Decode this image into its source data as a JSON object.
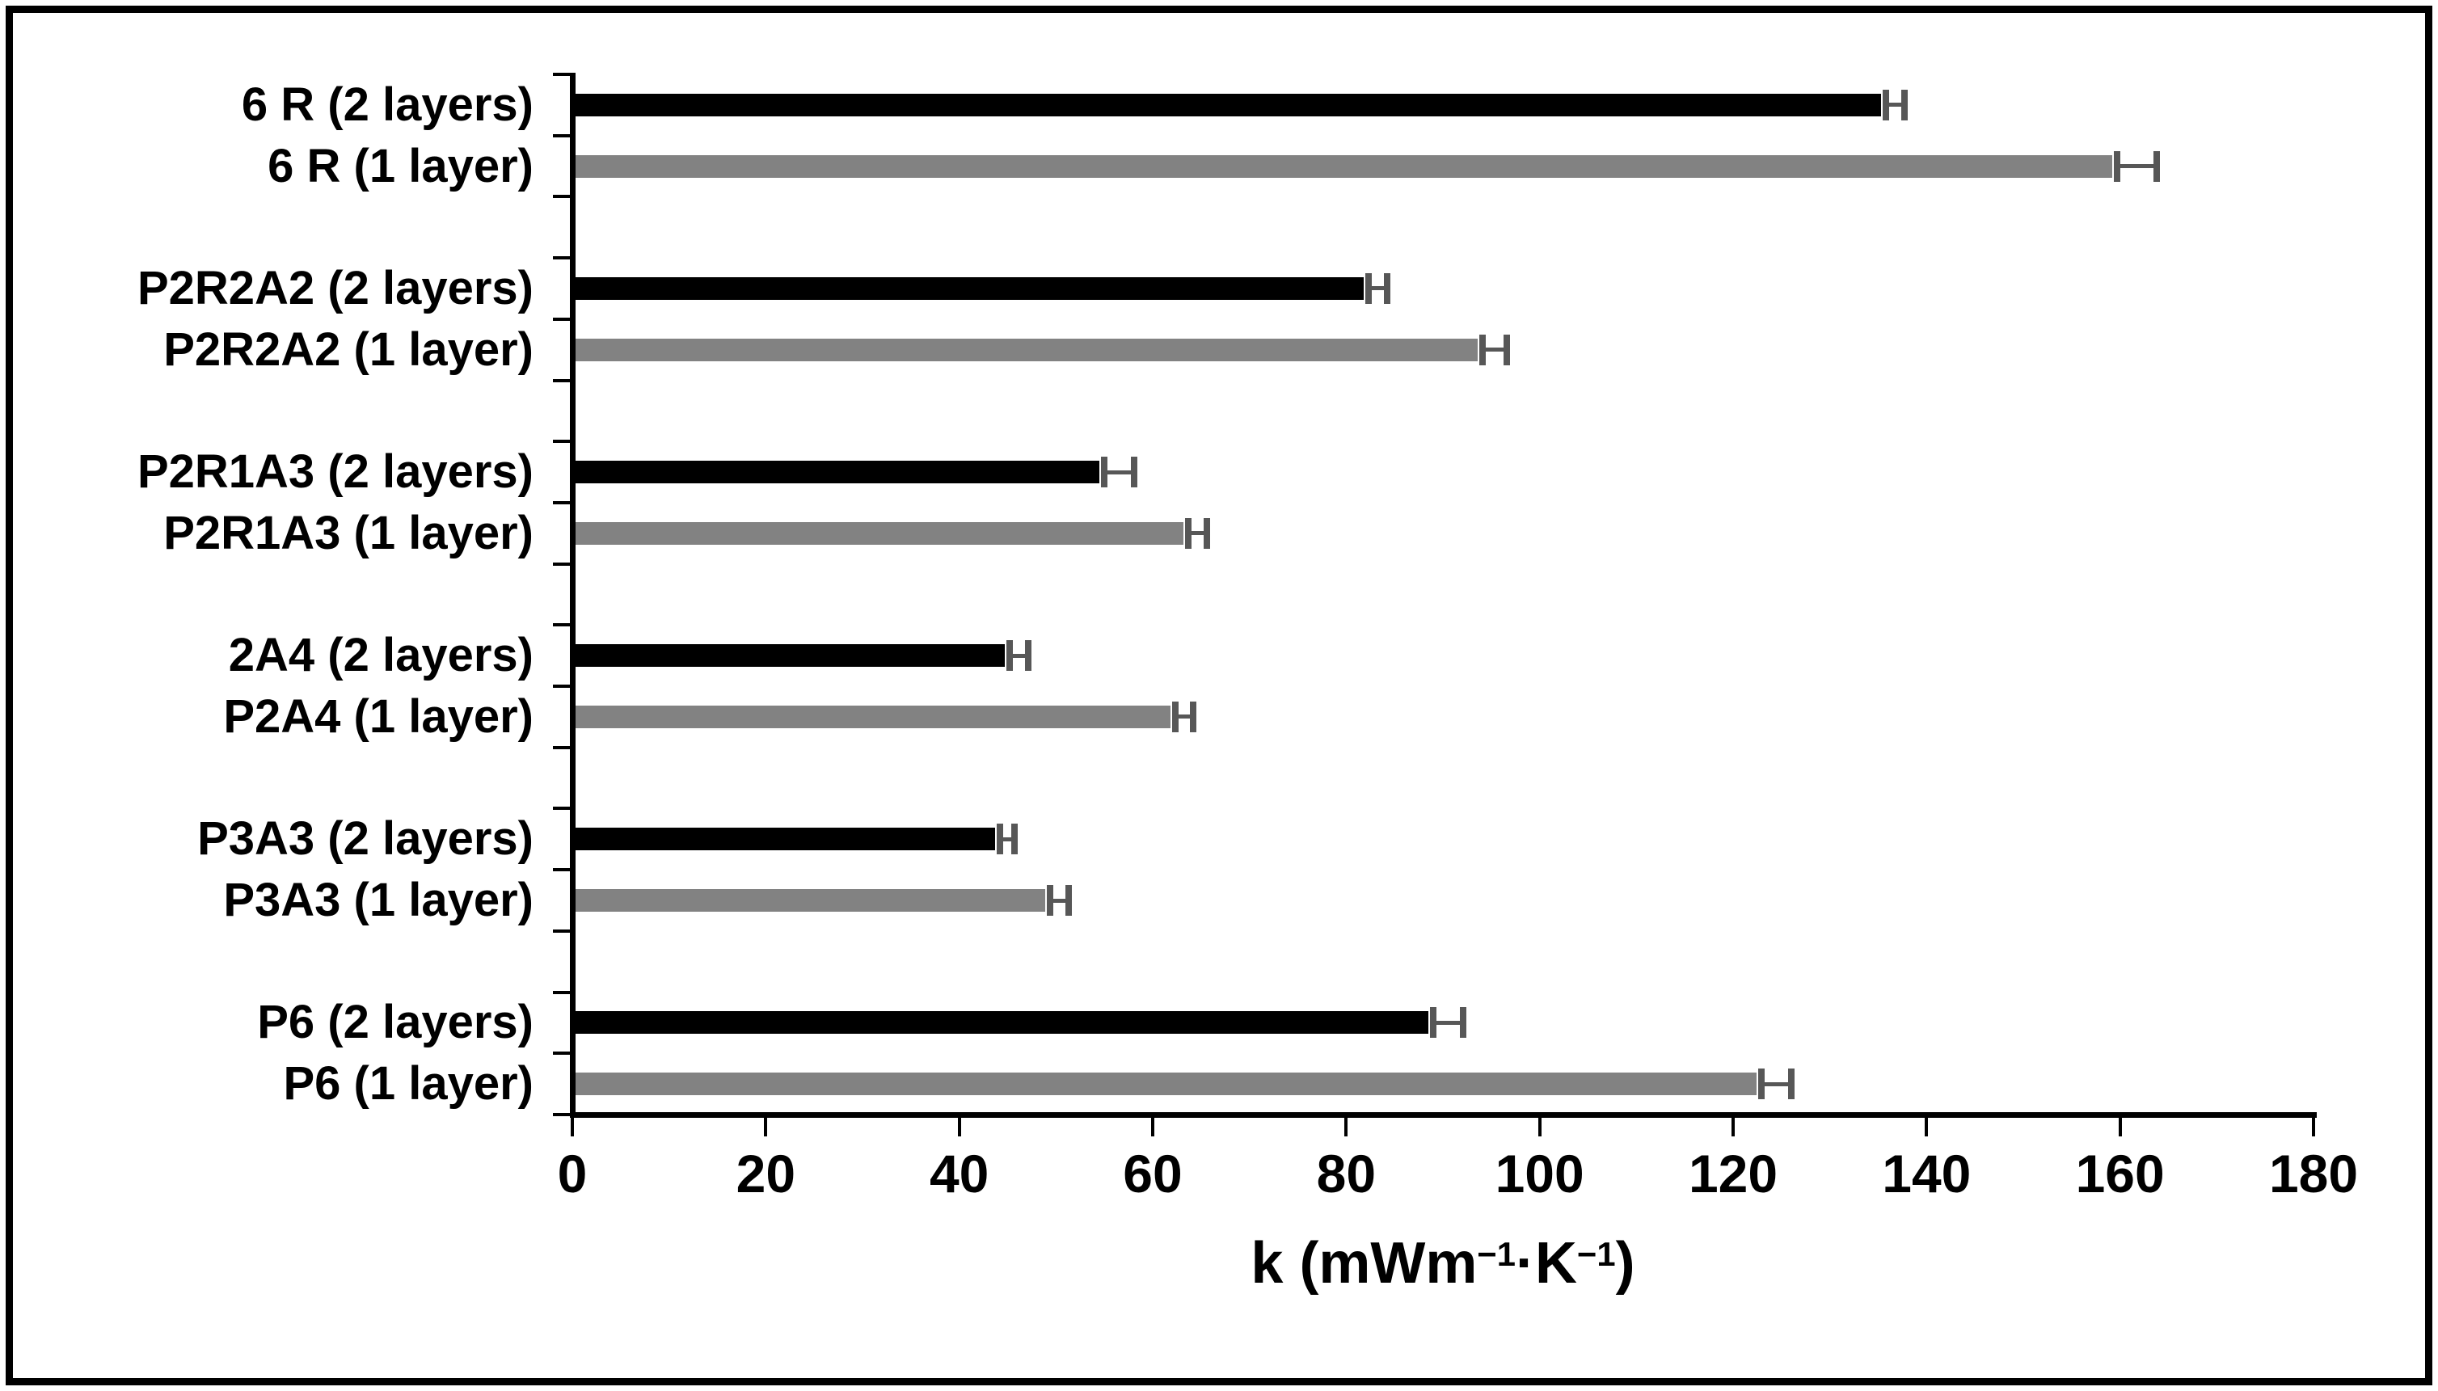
{
  "chart_data": {
    "type": "bar",
    "orientation": "horizontal",
    "title": "",
    "xlabel": "k (mWm−1·K−1)",
    "xlabel_parts": [
      {
        "t": "k (mWm",
        "sup": false
      },
      {
        "t": "−1",
        "sup": true
      },
      {
        "t": "·K",
        "sup": false
      },
      {
        "t": "−1",
        "sup": true
      },
      {
        "t": ")",
        "sup": false
      }
    ],
    "ylabel": "",
    "xlim": [
      0,
      180
    ],
    "xticks": [
      0,
      20,
      40,
      60,
      80,
      100,
      120,
      140,
      160,
      180
    ],
    "grid": false,
    "legend_position": "none",
    "categories": [
      "6 R (2 layers)",
      "6 R (1 layer)",
      "P2R2A2 (2 layers)",
      "P2R2A2 (1 layer)",
      "P2R1A3 (2 layers)",
      "P2R1A3 (1 layer)",
      "2A4 (2 layers)",
      "P2A4 (1 layer)",
      "P3A3 (2 layers)",
      "P3A3 (1 layer)",
      "P6 (2 layers)",
      "P6 (1 layer)"
    ],
    "values": [
      135.3,
      159.2,
      81.8,
      93.6,
      54.5,
      63.2,
      44.7,
      61.8,
      43.7,
      48.9,
      88.5,
      122.4
    ],
    "errors_plus": [
      1.2,
      2.3,
      1.2,
      1.5,
      1.8,
      1.2,
      1.2,
      1.2,
      1.0,
      1.2,
      1.8,
      1.8
    ],
    "bar_colors": [
      "#000000",
      "#828282",
      "#000000",
      "#828282",
      "#000000",
      "#828282",
      "#000000",
      "#828282",
      "#000000",
      "#828282",
      "#000000",
      "#828282"
    ],
    "group_gap_after_pairs": true,
    "colors": {
      "two_layers": "#000000",
      "one_layer": "#828282",
      "error_bar": "#575757",
      "axis": "#000000",
      "background": "#ffffff",
      "border": "#000000"
    }
  }
}
